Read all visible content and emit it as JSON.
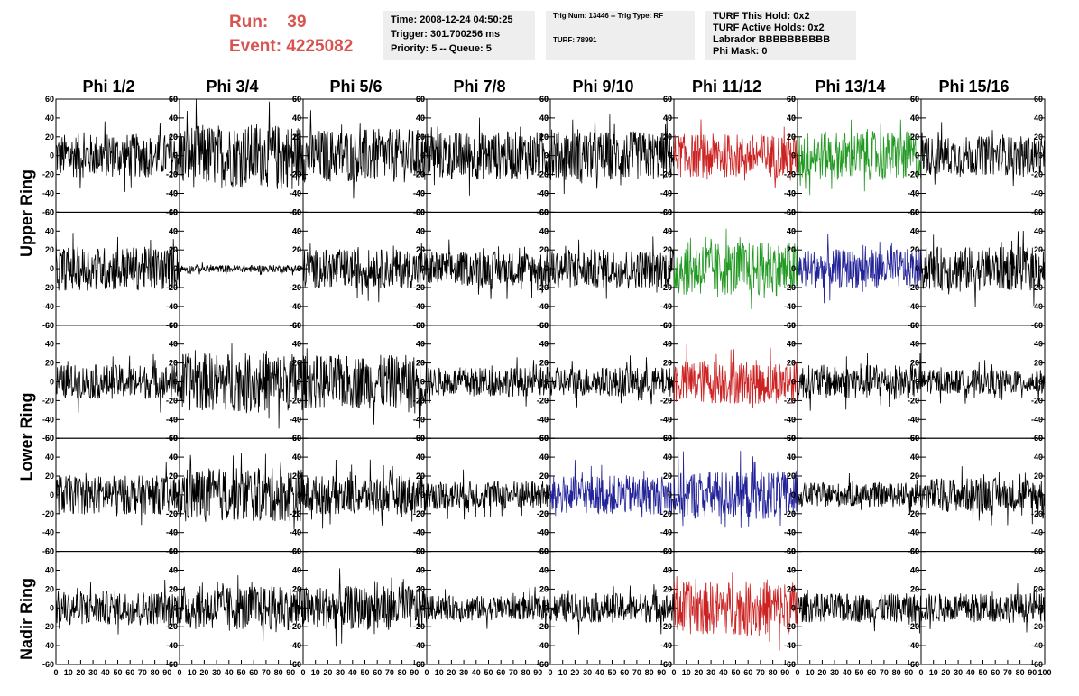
{
  "header": {
    "run_label": "Run:    39",
    "event_label": "Event: 4225082",
    "box1": [
      "Time: 2008-12-24 04:50:25",
      "Trigger: 301.700256 ms",
      "Priority: 5 -- Queue: 5"
    ],
    "box2": [
      "Trig Num: 13446 -- Trig Type: RF",
      "TURF: 78991"
    ],
    "box3": [
      "TURF This Hold: 0x2",
      "TURF Active Holds: 0x2",
      "Labrador BBBBBBBBBB",
      "Phi Mask: 0"
    ]
  },
  "columns": [
    "Phi 1/2",
    "Phi 3/4",
    "Phi 5/6",
    "Phi 7/8",
    "Phi 9/10",
    "Phi 11/12",
    "Phi 13/14",
    "Phi 15/16"
  ],
  "ring_labels": [
    "Upper Ring",
    "Lower Ring",
    "Nadir Ring"
  ],
  "colors": {
    "red": "#cc2222",
    "green": "#229922",
    "blue": "#222299",
    "black": "#000000",
    "title_red": "#d9534f"
  },
  "chart_data": {
    "type": "line",
    "rows": 5,
    "cols": 8,
    "xlim": [
      0,
      100
    ],
    "ylim": [
      -60,
      60
    ],
    "y_ticks": [
      -60,
      -40,
      -20,
      0,
      20,
      40,
      60
    ],
    "x_tick_labels": [
      "0",
      "10",
      "20",
      "30",
      "40",
      "50",
      "60",
      "70",
      "80",
      "90",
      "100"
    ],
    "panels": [
      {
        "row": 0,
        "col": 0,
        "color": "black",
        "amp": 18
      },
      {
        "row": 0,
        "col": 1,
        "color": "black",
        "amp": 26
      },
      {
        "row": 0,
        "col": 2,
        "color": "black",
        "amp": 22
      },
      {
        "row": 0,
        "col": 3,
        "color": "black",
        "amp": 20
      },
      {
        "row": 0,
        "col": 4,
        "color": "black",
        "amp": 20
      },
      {
        "row": 0,
        "col": 5,
        "color": "red",
        "amp": 18
      },
      {
        "row": 0,
        "col": 6,
        "color": "green",
        "amp": 20
      },
      {
        "row": 0,
        "col": 7,
        "color": "black",
        "amp": 16
      },
      {
        "row": 1,
        "col": 0,
        "color": "black",
        "amp": 18
      },
      {
        "row": 1,
        "col": 1,
        "color": "black",
        "amp": 3
      },
      {
        "row": 1,
        "col": 2,
        "color": "black",
        "amp": 16
      },
      {
        "row": 1,
        "col": 3,
        "color": "black",
        "amp": 14
      },
      {
        "row": 1,
        "col": 4,
        "color": "black",
        "amp": 16
      },
      {
        "row": 1,
        "col": 5,
        "color": "green",
        "amp": 22
      },
      {
        "row": 1,
        "col": 6,
        "color": "blue",
        "amp": 16
      },
      {
        "row": 1,
        "col": 7,
        "color": "black",
        "amp": 18
      },
      {
        "row": 2,
        "col": 0,
        "color": "black",
        "amp": 14
      },
      {
        "row": 2,
        "col": 1,
        "color": "black",
        "amp": 24
      },
      {
        "row": 2,
        "col": 2,
        "color": "black",
        "amp": 22
      },
      {
        "row": 2,
        "col": 3,
        "color": "black",
        "amp": 12
      },
      {
        "row": 2,
        "col": 4,
        "color": "black",
        "amp": 12
      },
      {
        "row": 2,
        "col": 5,
        "color": "red",
        "amp": 18
      },
      {
        "row": 2,
        "col": 6,
        "color": "black",
        "amp": 14
      },
      {
        "row": 2,
        "col": 7,
        "color": "black",
        "amp": 10
      },
      {
        "row": 3,
        "col": 0,
        "color": "black",
        "amp": 16
      },
      {
        "row": 3,
        "col": 1,
        "color": "black",
        "amp": 22
      },
      {
        "row": 3,
        "col": 2,
        "color": "black",
        "amp": 16
      },
      {
        "row": 3,
        "col": 3,
        "color": "black",
        "amp": 12
      },
      {
        "row": 3,
        "col": 4,
        "color": "blue",
        "amp": 16
      },
      {
        "row": 3,
        "col": 5,
        "color": "blue",
        "amp": 20
      },
      {
        "row": 3,
        "col": 6,
        "color": "black",
        "amp": 10
      },
      {
        "row": 3,
        "col": 7,
        "color": "black",
        "amp": 14
      },
      {
        "row": 4,
        "col": 0,
        "color": "black",
        "amp": 14
      },
      {
        "row": 4,
        "col": 1,
        "color": "black",
        "amp": 18
      },
      {
        "row": 4,
        "col": 2,
        "color": "black",
        "amp": 18
      },
      {
        "row": 4,
        "col": 3,
        "color": "black",
        "amp": 10
      },
      {
        "row": 4,
        "col": 4,
        "color": "black",
        "amp": 12
      },
      {
        "row": 4,
        "col": 5,
        "color": "red",
        "amp": 22
      },
      {
        "row": 4,
        "col": 6,
        "color": "black",
        "amp": 12
      },
      {
        "row": 4,
        "col": 7,
        "color": "black",
        "amp": 12
      }
    ]
  }
}
